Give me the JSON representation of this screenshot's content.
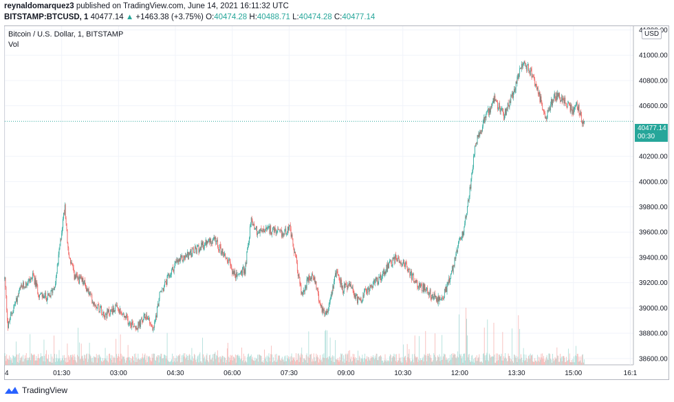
{
  "header": {
    "publisher": "reynaldomarquez3",
    "published_text": " published on TradingView.com, June 14, 2021 16:11:32 UTC",
    "symbol": "BITSTAMP:BTCUSD, 1",
    "last": "40477.14",
    "change_arrow": "▲",
    "change": "+1463.38 (+3.75%)",
    "o_label": "O:",
    "o": "40474.28",
    "h_label": "H:",
    "h": "40488.71",
    "l_label": "L:",
    "l": "40474.28",
    "c_label": "C:",
    "c": "40477.14"
  },
  "legend": {
    "title": "Bitcoin / U.S. Dollar, 1, BITSTAMP",
    "volume": "Vol"
  },
  "price_scale": {
    "currency": "USD",
    "current_price": "40477.14",
    "countdown": "00:30"
  },
  "footer": {
    "brand": "TradingView"
  },
  "colors": {
    "up": "#26a69a",
    "down": "#ef5350",
    "up_vol": "#a8dcd6",
    "down_vol": "#f6b3b1",
    "grid": "#f0f3fa"
  },
  "chart_data": {
    "type": "candlestick",
    "y_ticks": [
      "41200.00",
      "41000.00",
      "40800.00",
      "40600.00",
      "40200.00",
      "40000.00",
      "39800.00",
      "39600.00",
      "39400.00",
      "39200.00",
      "39000.00",
      "38800.00",
      "38600.00"
    ],
    "y_tick_values": [
      41200,
      41000,
      40800,
      40600,
      40200,
      40000,
      39800,
      39600,
      39400,
      39200,
      39000,
      38800,
      38600
    ],
    "ylim": [
      38550,
      41230
    ],
    "x_ticks": [
      "4",
      "01:30",
      "03:00",
      "04:30",
      "06:00",
      "07:30",
      "09:00",
      "10:30",
      "12:00",
      "13:30",
      "15:00",
      "16:1"
    ],
    "x_tick_minutes": [
      0,
      90,
      180,
      270,
      360,
      450,
      540,
      630,
      720,
      810,
      900,
      990
    ],
    "x_range_minutes": [
      0,
      995
    ],
    "current_price": 40477.14,
    "path": [
      [
        0,
        39230
      ],
      [
        5,
        38850
      ],
      [
        10,
        38950
      ],
      [
        25,
        39150
      ],
      [
        45,
        39250
      ],
      [
        55,
        39100
      ],
      [
        70,
        39080
      ],
      [
        80,
        39200
      ],
      [
        85,
        39400
      ],
      [
        95,
        39820
      ],
      [
        100,
        39450
      ],
      [
        110,
        39250
      ],
      [
        125,
        39200
      ],
      [
        140,
        39050
      ],
      [
        160,
        38950
      ],
      [
        175,
        39000
      ],
      [
        195,
        38900
      ],
      [
        210,
        38850
      ],
      [
        225,
        38950
      ],
      [
        235,
        38820
      ],
      [
        245,
        39100
      ],
      [
        255,
        39200
      ],
      [
        270,
        39350
      ],
      [
        290,
        39420
      ],
      [
        310,
        39480
      ],
      [
        330,
        39550
      ],
      [
        350,
        39400
      ],
      [
        365,
        39250
      ],
      [
        380,
        39300
      ],
      [
        390,
        39700
      ],
      [
        400,
        39600
      ],
      [
        420,
        39620
      ],
      [
        440,
        39580
      ],
      [
        450,
        39650
      ],
      [
        460,
        39400
      ],
      [
        470,
        39100
      ],
      [
        480,
        39220
      ],
      [
        490,
        39250
      ],
      [
        500,
        39000
      ],
      [
        510,
        38970
      ],
      [
        525,
        39300
      ],
      [
        535,
        39150
      ],
      [
        545,
        39180
      ],
      [
        560,
        39050
      ],
      [
        575,
        39150
      ],
      [
        590,
        39220
      ],
      [
        605,
        39320
      ],
      [
        620,
        39400
      ],
      [
        635,
        39340
      ],
      [
        650,
        39200
      ],
      [
        665,
        39150
      ],
      [
        680,
        39080
      ],
      [
        690,
        39050
      ],
      [
        705,
        39230
      ],
      [
        715,
        39450
      ],
      [
        725,
        39600
      ],
      [
        735,
        39900
      ],
      [
        745,
        40300
      ],
      [
        760,
        40500
      ],
      [
        775,
        40650
      ],
      [
        790,
        40520
      ],
      [
        805,
        40700
      ],
      [
        820,
        40950
      ],
      [
        835,
        40850
      ],
      [
        845,
        40700
      ],
      [
        855,
        40500
      ],
      [
        870,
        40680
      ],
      [
        885,
        40650
      ],
      [
        900,
        40550
      ],
      [
        905,
        40620
      ],
      [
        915,
        40470
      ],
      [
        917,
        40477.14
      ]
    ],
    "volume_scale_max": 1
  }
}
